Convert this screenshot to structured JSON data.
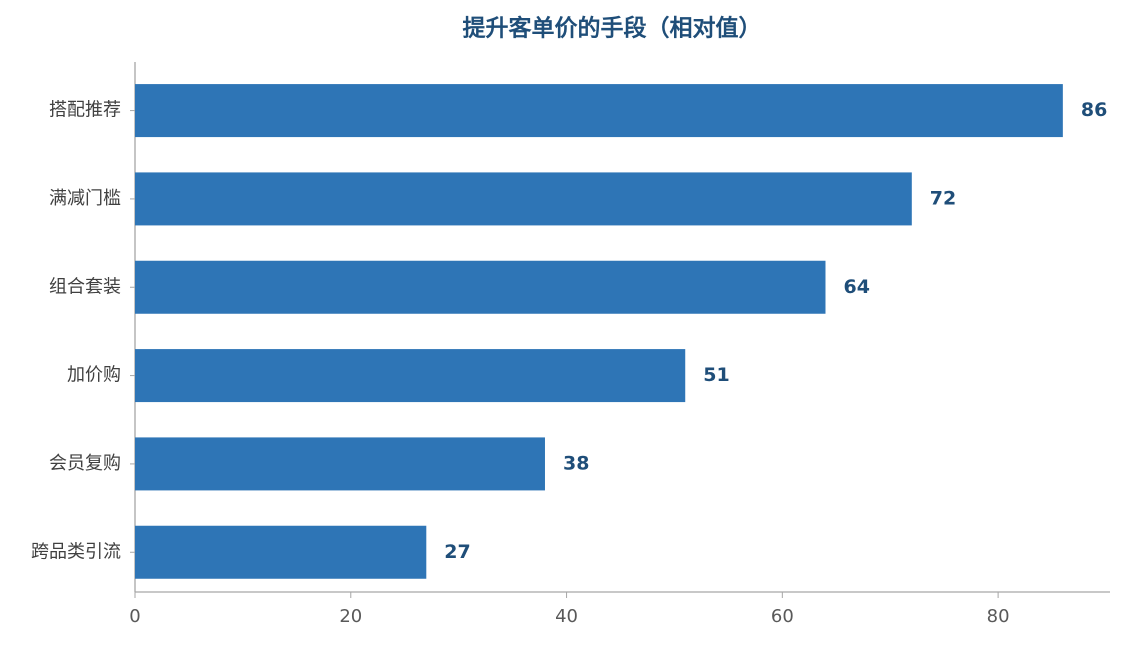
{
  "chart_data": {
    "type": "barh",
    "title": "提升客单价的手段（相对值）",
    "categories": [
      "搭配推荐",
      "满减门槛",
      "组合套装",
      "加价购",
      "会员复购",
      "跨品类引流"
    ],
    "values": [
      86,
      72,
      64,
      51,
      38,
      27
    ],
    "color": "#2e75b6",
    "xlim": [
      0,
      90
    ],
    "xticks": [
      0,
      20,
      40,
      60,
      80
    ],
    "grid": false
  }
}
